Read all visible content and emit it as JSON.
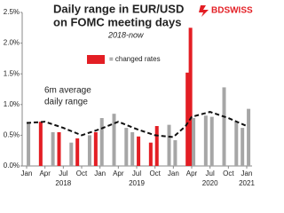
{
  "chart_data": {
    "type": "bar",
    "title": [
      "Daily range in EUR/USD",
      "on FOMC  meeting days"
    ],
    "subtitle": "2018-now",
    "logo": "BDSWISS",
    "legend": {
      "label": "= changed rates",
      "color": "#e31e24"
    },
    "bars": {
      "x": [
        "2018-01",
        "2018-03",
        "2018-05",
        "2018-06",
        "2018-08",
        "2018-09",
        "2018-11",
        "2018-12",
        "2019-01",
        "2019-03",
        "2019-05",
        "2019-06",
        "2019-07",
        "2019-09",
        "2019-10",
        "2019-12",
        "2020-01",
        "2020-03",
        "2020-03",
        "2020-04",
        "2020-06",
        "2020-07",
        "2020-09",
        "2020-11",
        "2020-12",
        "2021-01"
      ],
      "values": [
        0.7,
        0.72,
        0.55,
        0.55,
        0.38,
        0.45,
        0.5,
        0.55,
        0.78,
        0.85,
        0.62,
        0.55,
        0.48,
        0.38,
        0.65,
        0.67,
        0.42,
        1.52,
        2.25,
        0.78,
        0.82,
        0.8,
        1.28,
        0.72,
        0.62,
        0.93
      ],
      "colors": [
        "#a6a6a6",
        "#e31e24",
        "#a6a6a6",
        "#e31e24",
        "#a6a6a6",
        "#e31e24",
        "#a6a6a6",
        "#e31e24",
        "#a6a6a6",
        "#a6a6a6",
        "#a6a6a6",
        "#a6a6a6",
        "#e31e24",
        "#e31e24",
        "#e31e24",
        "#a6a6a6",
        "#a6a6a6",
        "#e31e24",
        "#e31e24",
        "#a6a6a6",
        "#a6a6a6",
        "#a6a6a6",
        "#a6a6a6",
        "#a6a6a6",
        "#a6a6a6",
        "#a6a6a6"
      ]
    },
    "line": {
      "label": [
        "6m average",
        "daily range"
      ],
      "color": "#111",
      "dashed": true,
      "x": [
        "2018-01",
        "2018-04",
        "2018-07",
        "2018-10",
        "2019-01",
        "2019-04",
        "2019-07",
        "2019-10",
        "2020-01",
        "2020-03",
        "2020-04",
        "2020-07",
        "2020-10",
        "2021-01"
      ],
      "values": [
        0.7,
        0.72,
        0.62,
        0.5,
        0.6,
        0.72,
        0.6,
        0.5,
        0.47,
        0.65,
        0.8,
        0.88,
        0.78,
        0.65
      ]
    },
    "xlim": [
      "2018-01",
      "2021-01"
    ],
    "xticks": [
      {
        "value": "2018-01",
        "label": "Jan"
      },
      {
        "value": "2018-04",
        "label": "Apr"
      },
      {
        "value": "2018-07",
        "label": "Jul"
      },
      {
        "value": "2018-10",
        "label": "Oct"
      },
      {
        "value": "2019-01",
        "label": "Jan"
      },
      {
        "value": "2019-04",
        "label": "Apr"
      },
      {
        "value": "2019-07",
        "label": "Jul"
      },
      {
        "value": "2019-10",
        "label": "Oct"
      },
      {
        "value": "2020-01",
        "label": "Jan"
      },
      {
        "value": "2020-04",
        "label": "Apr"
      },
      {
        "value": "2020-07",
        "label": "Jul"
      },
      {
        "value": "2020-10",
        "label": "Oct"
      },
      {
        "value": "2021-01",
        "label": "Jan"
      }
    ],
    "year_labels": [
      "2018",
      "2019",
      "2020",
      "2021"
    ],
    "ylim": [
      0,
      2.5
    ],
    "yticks": [
      {
        "value": 0,
        "label": "0.0%"
      },
      {
        "value": 0.5,
        "label": "0.5%"
      },
      {
        "value": 1,
        "label": "1.0%"
      },
      {
        "value": 1.5,
        "label": "1.5%"
      },
      {
        "value": 2,
        "label": "2.0%"
      },
      {
        "value": 2.5,
        "label": "2.5%"
      }
    ]
  }
}
